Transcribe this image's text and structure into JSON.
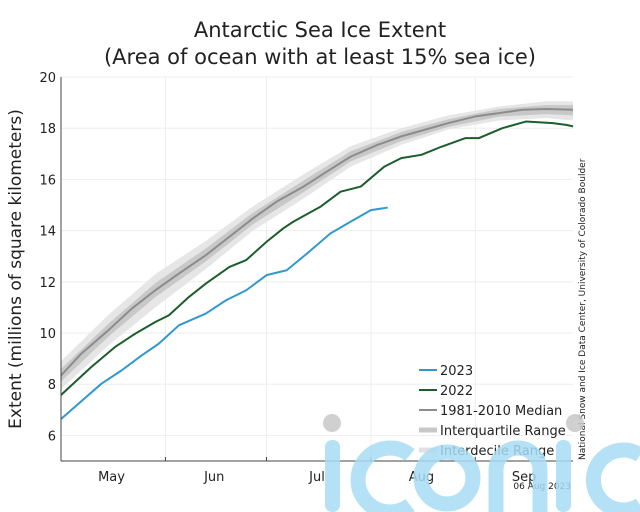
{
  "chart_data": {
    "type": "line",
    "title": "Antarctic Sea Ice Extent",
    "subtitle": "(Area of ocean with at least 15% sea ice)",
    "ylabel": "Extent (millions of square kilometers)",
    "xlabel": "",
    "ylim": [
      5,
      20
    ],
    "xlim": [
      "05-01",
      "09-30"
    ],
    "yticks": [
      "6",
      "8",
      "10",
      "12",
      "14",
      "16",
      "18",
      "20"
    ],
    "xtick_labels": [
      "May",
      "Jun",
      "Jul",
      "Aug",
      "Sep"
    ],
    "grid": true,
    "legend_placement": "bottom-right",
    "series": [
      {
        "name": "2023",
        "color": "#3399cc",
        "points": [
          [
            "05-01",
            6.64
          ],
          [
            "05-13",
            8.02
          ],
          [
            "05-19",
            8.54
          ],
          [
            "05-25",
            9.13
          ],
          [
            "05-30",
            9.58
          ],
          [
            "06-05",
            10.3
          ],
          [
            "06-13",
            10.76
          ],
          [
            "06-19",
            11.28
          ],
          [
            "06-25",
            11.67
          ],
          [
            "07-01",
            12.26
          ],
          [
            "07-07",
            12.45
          ],
          [
            "07-13",
            13.1
          ],
          [
            "07-20",
            13.89
          ],
          [
            "07-26",
            14.35
          ],
          [
            "08-01",
            14.8
          ],
          [
            "08-06",
            14.9
          ]
        ]
      },
      {
        "name": "2022",
        "color": "#1b5e2b",
        "points": [
          [
            "05-01",
            7.58
          ],
          [
            "05-10",
            8.67
          ],
          [
            "05-17",
            9.45
          ],
          [
            "05-23",
            9.97
          ],
          [
            "05-29",
            10.43
          ],
          [
            "06-02",
            10.69
          ],
          [
            "06-08",
            11.41
          ],
          [
            "06-13",
            11.93
          ],
          [
            "06-20",
            12.58
          ],
          [
            "06-25",
            12.85
          ],
          [
            "07-01",
            13.56
          ],
          [
            "07-06",
            14.09
          ],
          [
            "07-09",
            14.35
          ],
          [
            "07-17",
            14.93
          ],
          [
            "07-23",
            15.52
          ],
          [
            "07-29",
            15.72
          ],
          [
            "08-05",
            16.5
          ],
          [
            "08-10",
            16.83
          ],
          [
            "08-16",
            16.96
          ],
          [
            "08-22",
            17.28
          ],
          [
            "08-29",
            17.61
          ],
          [
            "09-02",
            17.61
          ],
          [
            "09-09",
            18.0
          ],
          [
            "09-16",
            18.26
          ],
          [
            "09-24",
            18.2
          ],
          [
            "09-28",
            18.13
          ],
          [
            "09-30",
            18.07
          ]
        ]
      },
      {
        "name": "1981-2010 Median",
        "color": "#8c8c8c",
        "points": [
          [
            "05-01",
            8.34
          ],
          [
            "05-07",
            9.19
          ],
          [
            "05-15",
            10.1
          ],
          [
            "05-22",
            10.95
          ],
          [
            "05-29",
            11.67
          ],
          [
            "06-05",
            12.32
          ],
          [
            "06-13",
            13.04
          ],
          [
            "06-20",
            13.76
          ],
          [
            "06-27",
            14.48
          ],
          [
            "07-04",
            15.13
          ],
          [
            "07-12",
            15.72
          ],
          [
            "07-19",
            16.31
          ],
          [
            "07-26",
            16.89
          ],
          [
            "08-03",
            17.35
          ],
          [
            "08-10",
            17.68
          ],
          [
            "08-17",
            17.94
          ],
          [
            "08-24",
            18.2
          ],
          [
            "09-01",
            18.46
          ],
          [
            "09-08",
            18.59
          ],
          [
            "09-15",
            18.72
          ],
          [
            "09-22",
            18.75
          ],
          [
            "09-30",
            18.72
          ]
        ]
      }
    ],
    "bands": [
      {
        "name": "Interquartile Range",
        "color": "#c8c8c8",
        "points": [
          [
            "05-01",
            8.1,
            8.6
          ],
          [
            "05-15",
            9.85,
            10.35
          ],
          [
            "05-29",
            11.4,
            11.95
          ],
          [
            "06-13",
            12.8,
            13.3
          ],
          [
            "06-27",
            14.25,
            14.7
          ],
          [
            "07-12",
            15.5,
            15.95
          ],
          [
            "07-26",
            16.7,
            17.1
          ],
          [
            "08-10",
            17.5,
            17.85
          ],
          [
            "08-24",
            18.05,
            18.35
          ],
          [
            "09-08",
            18.45,
            18.75
          ],
          [
            "09-22",
            18.55,
            18.9
          ],
          [
            "09-30",
            18.5,
            18.9
          ]
        ]
      },
      {
        "name": "Interdecile Range",
        "color": "#e6e6e6",
        "points": [
          [
            "05-01",
            7.8,
            8.9
          ],
          [
            "05-15",
            9.5,
            10.7
          ],
          [
            "05-29",
            11.0,
            12.3
          ],
          [
            "06-13",
            12.5,
            13.6
          ],
          [
            "06-27",
            14.0,
            14.95
          ],
          [
            "07-12",
            15.25,
            16.2
          ],
          [
            "07-26",
            16.5,
            17.3
          ],
          [
            "08-10",
            17.35,
            18.0
          ],
          [
            "08-24",
            17.95,
            18.5
          ],
          [
            "09-08",
            18.3,
            18.85
          ],
          [
            "09-22",
            18.4,
            19.05
          ],
          [
            "09-30",
            18.3,
            19.05
          ]
        ]
      }
    ],
    "credit": "National Snow and Ice Data Center, University of Colorado Boulder",
    "date_stamp": "06 Aug 2023"
  },
  "watermark": {
    "text": "iconic",
    "color": "#a8dcf5"
  }
}
